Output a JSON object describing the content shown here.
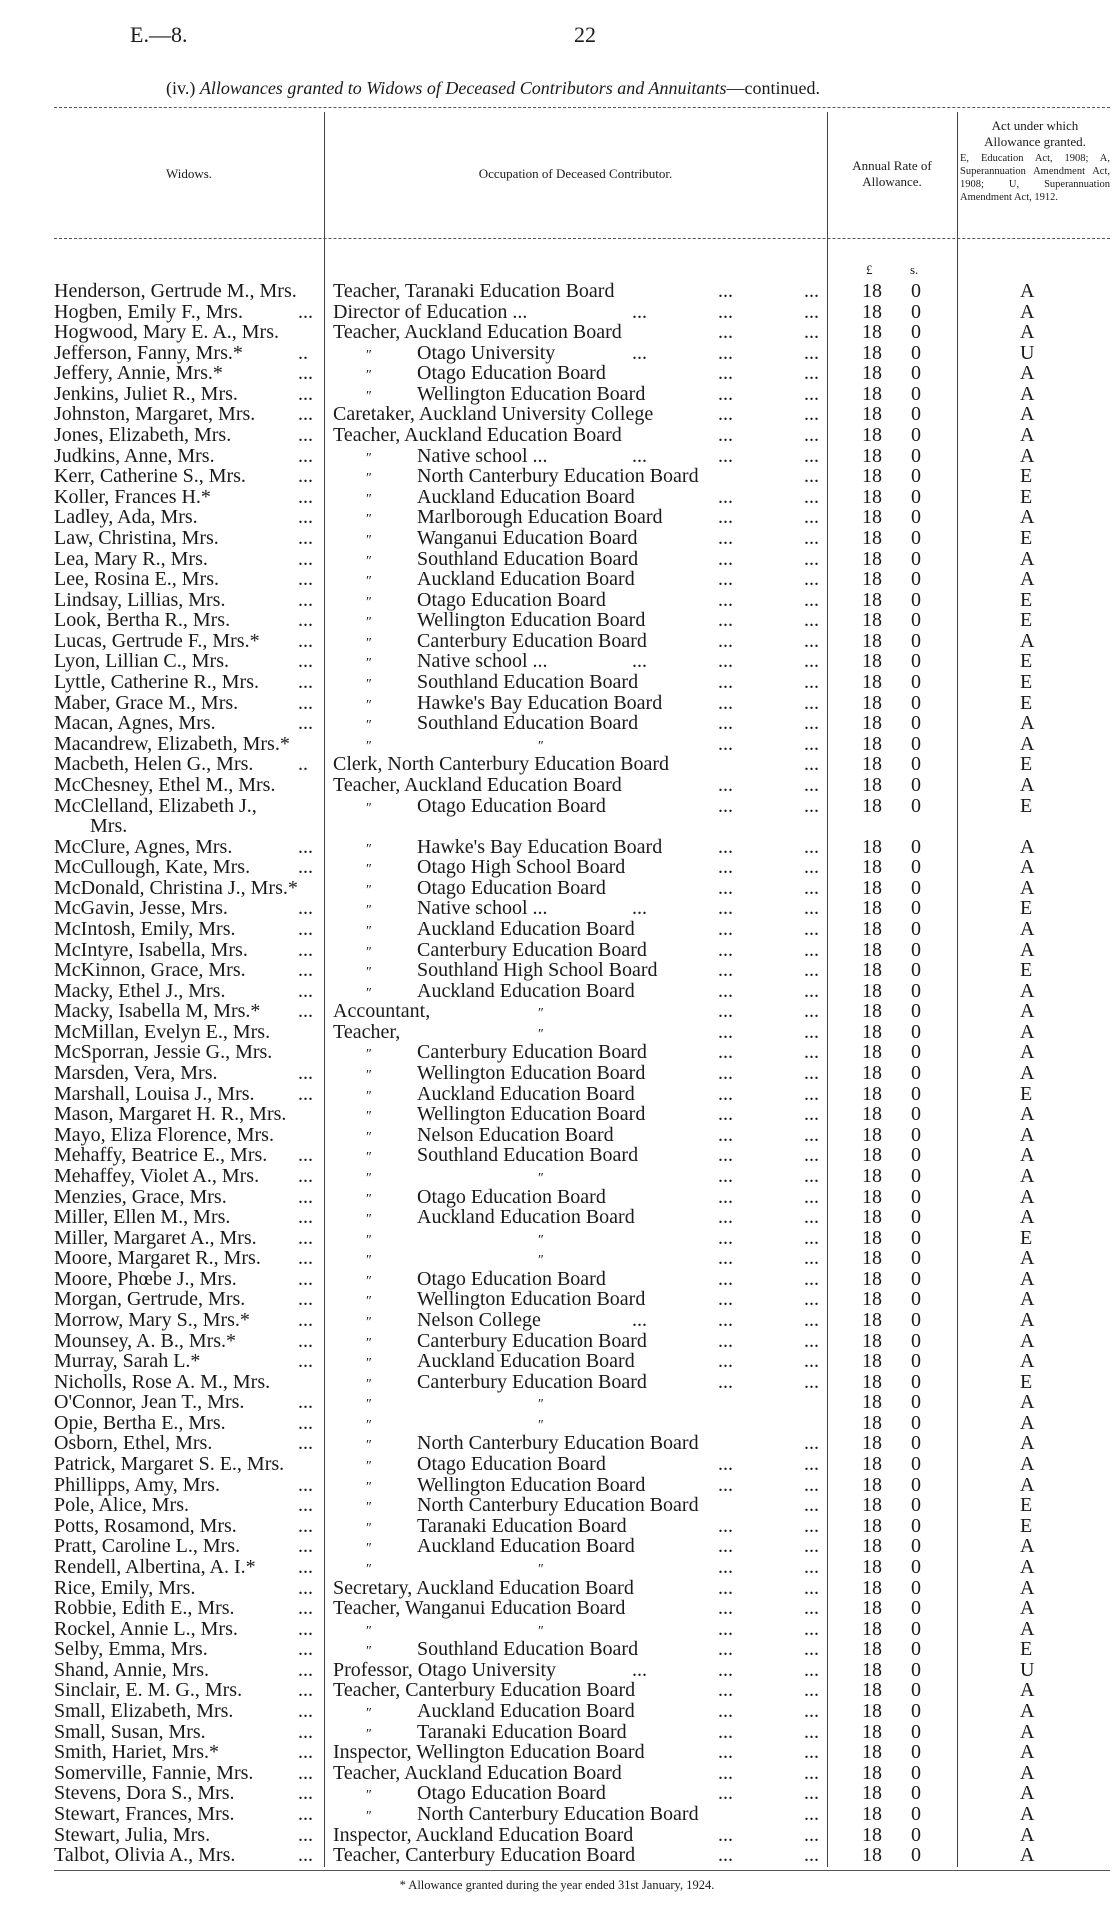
{
  "page": {
    "report_code": "E.—8.",
    "page_number": "22"
  },
  "title": {
    "prefix": "(iv.)",
    "italic": "Allowances granted to Widows of Deceased Contributors and Annuitants",
    "suffix": "—continued."
  },
  "headers": {
    "widows": "Widows.",
    "occupation": "Occupation of Deceased Contributor.",
    "rate_line1": "Annual Rate of",
    "rate_line2": "Allowance.",
    "act_line1": "Act under which",
    "act_line2": "Allowance granted.",
    "act_legend": "E, Education Act, 1908; A, Superannuation Amendment Act, 1908; U, Superannuation Amendment Act, 1912.",
    "pounds_unit": "£",
    "shillings_unit": "s."
  },
  "ditto_mark": "″",
  "rows": [
    {
      "name": "Henderson, Gertrude M., Mrs.",
      "lead": "",
      "prefix": "",
      "occ": "Teacher, Taranaki Education Board",
      "mid": "",
      "d1": "...",
      "d2": "...",
      "pounds": "18",
      "shillings": "0",
      "act": "A"
    },
    {
      "name": "Hogben, Emily F., Mrs.",
      "lead": "...",
      "prefix": "",
      "occ": "Director of Education ...",
      "mid": "...",
      "d1": "...",
      "d2": "...",
      "pounds": "18",
      "shillings": "0",
      "act": "A"
    },
    {
      "name": "Hogwood, Mary E. A., Mrs.",
      "lead": "",
      "prefix": "",
      "occ": "Teacher, Auckland Education Board",
      "mid": "",
      "d1": "...",
      "d2": "...",
      "pounds": "18",
      "shillings": "0",
      "act": "A"
    },
    {
      "name": "Jefferson, Fanny, Mrs.*",
      "lead": "..",
      "prefix": "″",
      "occ": "Otago University",
      "mid": "...",
      "d1": "...",
      "d2": "...",
      "pounds": "18",
      "shillings": "0",
      "act": "U"
    },
    {
      "name": "Jeffery, Annie, Mrs.*",
      "lead": "...",
      "prefix": "″",
      "occ": "Otago Education Board",
      "mid": "",
      "d1": "...",
      "d2": "...",
      "pounds": "18",
      "shillings": "0",
      "act": "A"
    },
    {
      "name": "Jenkins, Juliet R., Mrs.",
      "lead": "...",
      "prefix": "″",
      "occ": "Wellington Education Board",
      "mid": "",
      "d1": "...",
      "d2": "...",
      "pounds": "18",
      "shillings": "0",
      "act": "A"
    },
    {
      "name": "Johnston, Margaret, Mrs.",
      "lead": "...",
      "prefix": "",
      "occ": "Caretaker, Auckland University College",
      "mid": "",
      "d1": "...",
      "d2": "...",
      "pounds": "18",
      "shillings": "0",
      "act": "A"
    },
    {
      "name": "Jones, Elizabeth, Mrs.",
      "lead": "...",
      "prefix": "",
      "occ": "Teacher, Auckland Education Board",
      "mid": "",
      "d1": "...",
      "d2": "...",
      "pounds": "18",
      "shillings": "0",
      "act": "A"
    },
    {
      "name": "Judkins, Anne, Mrs.",
      "lead": "...",
      "prefix": "″",
      "occ": "Native school ...",
      "mid": "...",
      "d1": "...",
      "d2": "...",
      "pounds": "18",
      "shillings": "0",
      "act": "A"
    },
    {
      "name": "Kerr, Catherine S., Mrs.",
      "lead": "...",
      "prefix": "″",
      "occ": "North Canterbury Education Board",
      "mid": "",
      "d1": "",
      "d2": "...",
      "pounds": "18",
      "shillings": "0",
      "act": "E"
    },
    {
      "name": "Koller, Frances H.*",
      "lead": "...",
      "prefix": "″",
      "occ": "Auckland Education Board",
      "mid": "",
      "d1": "...",
      "d2": "...",
      "pounds": "18",
      "shillings": "0",
      "act": "E"
    },
    {
      "name": "Ladley, Ada, Mrs.",
      "lead": "...",
      "prefix": "″",
      "occ": "Marlborough Education Board",
      "mid": "",
      "d1": "...",
      "d2": "...",
      "pounds": "18",
      "shillings": "0",
      "act": "A"
    },
    {
      "name": "Law, Christina, Mrs.",
      "lead": "...",
      "prefix": "″",
      "occ": "Wanganui Education Board",
      "mid": "",
      "d1": "...",
      "d2": "...",
      "pounds": "18",
      "shillings": "0",
      "act": "E"
    },
    {
      "name": "Lea, Mary R., Mrs.",
      "lead": "...",
      "prefix": "″",
      "occ": "Southland Education Board",
      "mid": "",
      "d1": "...",
      "d2": "...",
      "pounds": "18",
      "shillings": "0",
      "act": "A"
    },
    {
      "name": "Lee, Rosina E., Mrs.",
      "lead": "...",
      "prefix": "″",
      "occ": "Auckland Education Board",
      "mid": "",
      "d1": "...",
      "d2": "...",
      "pounds": "18",
      "shillings": "0",
      "act": "A"
    },
    {
      "name": "Lindsay, Lillias, Mrs.",
      "lead": "...",
      "prefix": "″",
      "occ": "Otago Education Board",
      "mid": "",
      "d1": "...",
      "d2": "...",
      "pounds": "18",
      "shillings": "0",
      "act": "E"
    },
    {
      "name": "Look, Bertha R., Mrs.",
      "lead": "...",
      "prefix": "″",
      "occ": "Wellington Education Board",
      "mid": "",
      "d1": "...",
      "d2": "...",
      "pounds": "18",
      "shillings": "0",
      "act": "E"
    },
    {
      "name": "Lucas, Gertrude F., Mrs.*",
      "lead": "...",
      "prefix": "″",
      "occ": "Canterbury Education Board",
      "mid": "",
      "d1": "...",
      "d2": "...",
      "pounds": "18",
      "shillings": "0",
      "act": "A"
    },
    {
      "name": "Lyon, Lillian C., Mrs.",
      "lead": "...",
      "prefix": "″",
      "occ": "Native school ...",
      "mid": "...",
      "d1": "...",
      "d2": "...",
      "pounds": "18",
      "shillings": "0",
      "act": "E"
    },
    {
      "name": "Lyttle, Catherine R., Mrs.",
      "lead": "...",
      "prefix": "″",
      "occ": "Southland Education Board",
      "mid": "",
      "d1": "...",
      "d2": "...",
      "pounds": "18",
      "shillings": "0",
      "act": "E"
    },
    {
      "name": "Maber, Grace M., Mrs.",
      "lead": "...",
      "prefix": "″",
      "occ": "Hawke's Bay Education Board",
      "mid": "",
      "d1": "...",
      "d2": "...",
      "pounds": "18",
      "shillings": "0",
      "act": "E"
    },
    {
      "name": "Macan, Agnes, Mrs.",
      "lead": "...",
      "prefix": "″",
      "occ": "Southland Education Board",
      "mid": "",
      "d1": "...",
      "d2": "...",
      "pounds": "18",
      "shillings": "0",
      "act": "A"
    },
    {
      "name": "Macandrew, Elizabeth, Mrs.*",
      "lead": "",
      "prefix": "″",
      "occ": "″",
      "mid": "",
      "d1": "...",
      "d2": "...",
      "pounds": "18",
      "shillings": "0",
      "act": "A"
    },
    {
      "name": "Macbeth, Helen G., Mrs.",
      "lead": "..",
      "prefix": "",
      "occ": "Clerk, North Canterbury Education Board",
      "mid": "",
      "d1": "",
      "d2": "...",
      "pounds": "18",
      "shillings": "0",
      "act": "E"
    },
    {
      "name": "McChesney, Ethel M., Mrs.",
      "lead": "",
      "prefix": "",
      "occ": "Teacher, Auckland Education Board",
      "mid": "",
      "d1": "...",
      "d2": "...",
      "pounds": "18",
      "shillings": "0",
      "act": "A"
    },
    {
      "name": "McClelland, Elizabeth J.,",
      "name_cont": "Mrs.",
      "lead": "",
      "prefix": "″",
      "occ": "Otago Education Board",
      "mid": "",
      "d1": "...",
      "d2": "...",
      "pounds": "18",
      "shillings": "0",
      "act": "E"
    },
    {
      "name": "McClure, Agnes, Mrs.",
      "lead": "...",
      "prefix": "″",
      "occ": "Hawke's Bay Education Board",
      "mid": "",
      "d1": "...",
      "d2": "...",
      "pounds": "18",
      "shillings": "0",
      "act": "A"
    },
    {
      "name": "McCullough, Kate, Mrs.",
      "lead": "...",
      "prefix": "″",
      "occ": "Otago High School Board",
      "mid": "",
      "d1": "...",
      "d2": "...",
      "pounds": "18",
      "shillings": "0",
      "act": "A"
    },
    {
      "name": "McDonald, Christina J., Mrs.*",
      "lead": "",
      "prefix": "″",
      "occ": "Otago Education Board",
      "mid": "",
      "d1": "...",
      "d2": "...",
      "pounds": "18",
      "shillings": "0",
      "act": "A"
    },
    {
      "name": "McGavin, Jesse, Mrs.",
      "lead": "...",
      "prefix": "″",
      "occ": "Native school ...",
      "mid": "...",
      "d1": "...",
      "d2": "...",
      "pounds": "18",
      "shillings": "0",
      "act": "E"
    },
    {
      "name": "McIntosh, Emily, Mrs.",
      "lead": "...",
      "prefix": "″",
      "occ": "Auckland Education Board",
      "mid": "",
      "d1": "...",
      "d2": "...",
      "pounds": "18",
      "shillings": "0",
      "act": "A"
    },
    {
      "name": "McIntyre, Isabella, Mrs.",
      "lead": "...",
      "prefix": "″",
      "occ": "Canterbury Education Board",
      "mid": "",
      "d1": "...",
      "d2": "...",
      "pounds": "18",
      "shillings": "0",
      "act": "A"
    },
    {
      "name": "McKinnon, Grace, Mrs.",
      "lead": "...",
      "prefix": "″",
      "occ": "Southland High School Board",
      "mid": "",
      "d1": "...",
      "d2": "...",
      "pounds": "18",
      "shillings": "0",
      "act": "E"
    },
    {
      "name": "Macky, Ethel J., Mrs.",
      "lead": "...",
      "prefix": "″",
      "occ": "Auckland Education Board",
      "mid": "",
      "d1": "...",
      "d2": "...",
      "pounds": "18",
      "shillings": "0",
      "act": "A"
    },
    {
      "name": "Macky, Isabella M, Mrs.*",
      "lead": "...",
      "prefix": "Accountant,",
      "occ": "″",
      "mid": "",
      "d1": "...",
      "d2": "...",
      "pounds": "18",
      "shillings": "0",
      "act": "A"
    },
    {
      "name": "McMillan, Evelyn E., Mrs.",
      "lead": "",
      "prefix": "Teacher,",
      "occ": "″",
      "mid": "",
      "d1": "...",
      "d2": "...",
      "pounds": "18",
      "shillings": "0",
      "act": "A"
    },
    {
      "name": "McSporran, Jessie G., Mrs.",
      "lead": "",
      "prefix": "″",
      "occ": "Canterbury Education Board",
      "mid": "",
      "d1": "...",
      "d2": "...",
      "pounds": "18",
      "shillings": "0",
      "act": "A"
    },
    {
      "name": "Marsden, Vera, Mrs.",
      "lead": "...",
      "prefix": "″",
      "occ": "Wellington Education Board",
      "mid": "",
      "d1": "...",
      "d2": "...",
      "pounds": "18",
      "shillings": "0",
      "act": "A"
    },
    {
      "name": "Marshall, Louisa J., Mrs.",
      "lead": "...",
      "prefix": "″",
      "occ": "Auckland Education Board",
      "mid": "",
      "d1": "...",
      "d2": "...",
      "pounds": "18",
      "shillings": "0",
      "act": "E"
    },
    {
      "name": "Mason, Margaret H. R., Mrs.",
      "lead": "",
      "prefix": "″",
      "occ": "Wellington Education Board",
      "mid": "",
      "d1": "...",
      "d2": "...",
      "pounds": "18",
      "shillings": "0",
      "act": "A"
    },
    {
      "name": "Mayo, Eliza Florence, Mrs.",
      "lead": "",
      "prefix": "″",
      "occ": "Nelson Education Board",
      "mid": "",
      "d1": "...",
      "d2": "...",
      "pounds": "18",
      "shillings": "0",
      "act": "A"
    },
    {
      "name": "Mehaffy, Beatrice E., Mrs.",
      "lead": "...",
      "prefix": "″",
      "occ": "Southland Education Board",
      "mid": "",
      "d1": "...",
      "d2": "...",
      "pounds": "18",
      "shillings": "0",
      "act": "A"
    },
    {
      "name": "Mehaffey, Violet A., Mrs.",
      "lead": "...",
      "prefix": "″",
      "occ": "″",
      "mid": "",
      "d1": "...",
      "d2": "...",
      "pounds": "18",
      "shillings": "0",
      "act": "A"
    },
    {
      "name": "Menzies, Grace, Mrs.",
      "lead": "...",
      "prefix": "″",
      "occ": "Otago Education Board",
      "mid": "",
      "d1": "...",
      "d2": "...",
      "pounds": "18",
      "shillings": "0",
      "act": "A"
    },
    {
      "name": "Miller, Ellen M., Mrs.",
      "lead": "...",
      "prefix": "″",
      "occ": "Auckland Education Board",
      "mid": "",
      "d1": "...",
      "d2": "...",
      "pounds": "18",
      "shillings": "0",
      "act": "A"
    },
    {
      "name": "Miller, Margaret A., Mrs.",
      "lead": "...",
      "prefix": "″",
      "occ": "″",
      "mid": "",
      "d1": "...",
      "d2": "...",
      "pounds": "18",
      "shillings": "0",
      "act": "E"
    },
    {
      "name": "Moore, Margaret R., Mrs.",
      "lead": "...",
      "prefix": "″",
      "occ": "″",
      "mid": "",
      "d1": "...",
      "d2": "...",
      "pounds": "18",
      "shillings": "0",
      "act": "A"
    },
    {
      "name": "Moore, Phœbe J., Mrs.",
      "lead": "...",
      "prefix": "″",
      "occ": "Otago Education Board",
      "mid": "",
      "d1": "...",
      "d2": "...",
      "pounds": "18",
      "shillings": "0",
      "act": "A"
    },
    {
      "name": "Morgan, Gertrude, Mrs.",
      "lead": "...",
      "prefix": "″",
      "occ": "Wellington Education Board",
      "mid": "",
      "d1": "...",
      "d2": "...",
      "pounds": "18",
      "shillings": "0",
      "act": "A"
    },
    {
      "name": "Morrow, Mary S., Mrs.*",
      "lead": "...",
      "prefix": "″",
      "occ": "Nelson College",
      "mid": "...",
      "d1": "...",
      "d2": "...",
      "pounds": "18",
      "shillings": "0",
      "act": "A"
    },
    {
      "name": "Mounsey, A. B., Mrs.*",
      "lead": "...",
      "prefix": "″",
      "occ": "Canterbury Education Board",
      "mid": "",
      "d1": "...",
      "d2": "...",
      "pounds": "18",
      "shillings": "0",
      "act": "A"
    },
    {
      "name": "Murray, Sarah L.*",
      "lead": "...",
      "prefix": "″",
      "occ": "Auckland Education Board",
      "mid": "",
      "d1": "...",
      "d2": "...",
      "pounds": "18",
      "shillings": "0",
      "act": "A"
    },
    {
      "name": "Nicholls, Rose A. M., Mrs.",
      "lead": "",
      "prefix": "″",
      "occ": "Canterbury Education Board",
      "mid": "",
      "d1": "...",
      "d2": "...",
      "pounds": "18",
      "shillings": "0",
      "act": "E"
    },
    {
      "name": "O'Connor, Jean T., Mrs.",
      "lead": "...",
      "prefix": "″",
      "occ": "″",
      "mid": "",
      "d1": "",
      "d2": "",
      "pounds": "18",
      "shillings": "0",
      "act": "A"
    },
    {
      "name": "Opie, Bertha E., Mrs.",
      "lead": "...",
      "prefix": "″",
      "occ": "″",
      "mid": "",
      "d1": "",
      "d2": "",
      "pounds": "18",
      "shillings": "0",
      "act": "A"
    },
    {
      "name": "Osborn, Ethel, Mrs.",
      "lead": "...",
      "prefix": "″",
      "occ": "North Canterbury Education Board",
      "mid": "",
      "d1": "",
      "d2": "...",
      "pounds": "18",
      "shillings": "0",
      "act": "A"
    },
    {
      "name": "Patrick, Margaret S. E., Mrs.",
      "lead": "",
      "prefix": "″",
      "occ": "Otago Education Board",
      "mid": "",
      "d1": "...",
      "d2": "...",
      "pounds": "18",
      "shillings": "0",
      "act": "A"
    },
    {
      "name": "Phillipps, Amy, Mrs.",
      "lead": "...",
      "prefix": "″",
      "occ": "Wellington Education Board",
      "mid": "",
      "d1": "...",
      "d2": "...",
      "pounds": "18",
      "shillings": "0",
      "act": "A"
    },
    {
      "name": "Pole, Alice, Mrs.",
      "lead": "...",
      "prefix": "″",
      "occ": "North Canterbury Education Board",
      "mid": "",
      "d1": "",
      "d2": "...",
      "pounds": "18",
      "shillings": "0",
      "act": "E"
    },
    {
      "name": "Potts, Rosamond, Mrs.",
      "lead": "...",
      "prefix": "″",
      "occ": "Taranaki Education Board",
      "mid": "",
      "d1": "...",
      "d2": "...",
      "pounds": "18",
      "shillings": "0",
      "act": "E"
    },
    {
      "name": "Pratt, Caroline L., Mrs.",
      "lead": "...",
      "prefix": "″",
      "occ": "Auckland Education Board",
      "mid": "",
      "d1": "...",
      "d2": "...",
      "pounds": "18",
      "shillings": "0",
      "act": "A"
    },
    {
      "name": "Rendell, Albertina, A. I.*",
      "lead": "...",
      "prefix": "″",
      "occ": "″",
      "mid": "",
      "d1": "...",
      "d2": "...",
      "pounds": "18",
      "shillings": "0",
      "act": "A"
    },
    {
      "name": "Rice, Emily, Mrs.",
      "lead": "...",
      "prefix": "",
      "occ": "Secretary, Auckland Education Board",
      "mid": "",
      "d1": "...",
      "d2": "...",
      "pounds": "18",
      "shillings": "0",
      "act": "A"
    },
    {
      "name": "Robbie, Edith E., Mrs.",
      "lead": "...",
      "prefix": "",
      "occ": "Teacher, Wanganui Education Board",
      "mid": "",
      "d1": "...",
      "d2": "...",
      "pounds": "18",
      "shillings": "0",
      "act": "A"
    },
    {
      "name": "Rockel, Annie L., Mrs.",
      "lead": "...",
      "prefix": "″",
      "occ": "″",
      "mid": "",
      "d1": "...",
      "d2": "...",
      "pounds": "18",
      "shillings": "0",
      "act": "A"
    },
    {
      "name": "Selby, Emma, Mrs.",
      "lead": "...",
      "prefix": "″",
      "occ": "Southland Education Board",
      "mid": "",
      "d1": "...",
      "d2": "...",
      "pounds": "18",
      "shillings": "0",
      "act": "E"
    },
    {
      "name": "Shand, Annie, Mrs.",
      "lead": "...",
      "prefix": "",
      "occ": "Professor, Otago University",
      "mid": "...",
      "d1": "...",
      "d2": "...",
      "pounds": "18",
      "shillings": "0",
      "act": "U"
    },
    {
      "name": "Sinclair, E. M. G., Mrs.",
      "lead": "...",
      "prefix": "",
      "occ": "Teacher, Canterbury Education Board",
      "mid": "",
      "d1": "...",
      "d2": "...",
      "pounds": "18",
      "shillings": "0",
      "act": "A"
    },
    {
      "name": "Small, Elizabeth, Mrs.",
      "lead": "...",
      "prefix": "″",
      "occ": "Auckland Education Board",
      "mid": "",
      "d1": "...",
      "d2": "...",
      "pounds": "18",
      "shillings": "0",
      "act": "A"
    },
    {
      "name": "Small, Susan, Mrs.",
      "lead": "...",
      "prefix": "″",
      "occ": "Taranaki Education Board",
      "mid": "",
      "d1": "...",
      "d2": "...",
      "pounds": "18",
      "shillings": "0",
      "act": "A"
    },
    {
      "name": "Smith, Hariet, Mrs.*",
      "lead": "...",
      "prefix": "",
      "occ": "Inspector, Wellington Education Board",
      "mid": "",
      "d1": "...",
      "d2": "...",
      "pounds": "18",
      "shillings": "0",
      "act": "A"
    },
    {
      "name": "Somerville, Fannie, Mrs.",
      "lead": "...",
      "prefix": "",
      "occ": "Teacher, Auckland Education Board",
      "mid": "",
      "d1": "...",
      "d2": "...",
      "pounds": "18",
      "shillings": "0",
      "act": "A"
    },
    {
      "name": "Stevens, Dora S., Mrs.",
      "lead": "...",
      "prefix": "″",
      "occ": "Otago Education Board",
      "mid": "",
      "d1": "...",
      "d2": "...",
      "pounds": "18",
      "shillings": "0",
      "act": "A"
    },
    {
      "name": "Stewart, Frances, Mrs.",
      "lead": "...",
      "prefix": "″",
      "occ": "North Canterbury Education Board",
      "mid": "",
      "d1": "",
      "d2": "...",
      "pounds": "18",
      "shillings": "0",
      "act": "A"
    },
    {
      "name": "Stewart, Julia, Mrs.",
      "lead": "...",
      "prefix": "",
      "occ": "Inspector, Auckland Education Board",
      "mid": "",
      "d1": "...",
      "d2": "...",
      "pounds": "18",
      "shillings": "0",
      "act": "A"
    },
    {
      "name": "Talbot, Olivia A., Mrs.",
      "lead": "...",
      "prefix": "",
      "occ": "Teacher, Canterbury Education Board",
      "mid": "",
      "d1": "...",
      "d2": "...",
      "pounds": "18",
      "shillings": "0",
      "act": "A"
    }
  ],
  "footnote": "* Allowance granted during the year ended 31st January, 1924."
}
